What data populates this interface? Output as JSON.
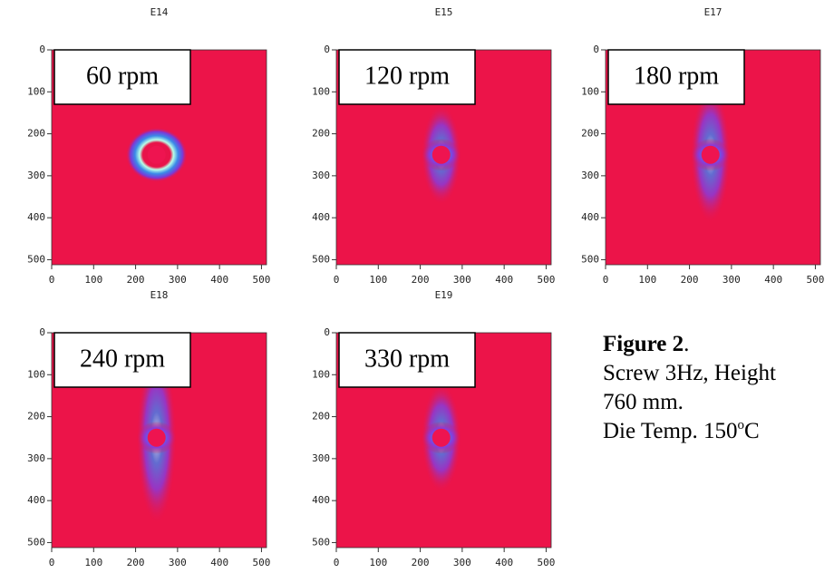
{
  "panels": [
    {
      "title": "E14",
      "label": "60 rpm",
      "xlim": [
        0,
        512
      ],
      "ylim": [
        0,
        512
      ],
      "xticks": [
        0,
        100,
        200,
        300,
        400,
        500
      ],
      "yticks": [
        0,
        100,
        200,
        300,
        400,
        500
      ]
    },
    {
      "title": "E15",
      "label": "120 rpm",
      "xlim": [
        0,
        512
      ],
      "ylim": [
        0,
        512
      ],
      "xticks": [
        0,
        100,
        200,
        300,
        400,
        500
      ],
      "yticks": [
        0,
        100,
        200,
        300,
        400,
        500
      ]
    },
    {
      "title": "E17",
      "label": "180 rpm",
      "xlim": [
        0,
        512
      ],
      "ylim": [
        0,
        512
      ],
      "xticks": [
        0,
        100,
        200,
        300,
        400,
        500
      ],
      "yticks": [
        0,
        100,
        200,
        300,
        400,
        500
      ]
    },
    {
      "title": "E18",
      "label": "240 rpm",
      "xlim": [
        0,
        512
      ],
      "ylim": [
        0,
        512
      ],
      "xticks": [
        0,
        100,
        200,
        300,
        400,
        500
      ],
      "yticks": [
        0,
        100,
        200,
        300,
        400,
        500
      ]
    },
    {
      "title": "E19",
      "label": "330 rpm",
      "xlim": [
        0,
        512
      ],
      "ylim": [
        0,
        512
      ],
      "xticks": [
        0,
        100,
        200,
        300,
        400,
        500
      ],
      "yticks": [
        0,
        100,
        200,
        300,
        400,
        500
      ]
    }
  ],
  "caption": {
    "title": "Figure 2",
    "title_end": ".",
    "lines": [
      "Screw 3Hz, Height",
      "760 mm."
    ],
    "temp": {
      "text": "Die Temp. 150",
      "sup": "o",
      "unit": "C"
    }
  }
}
